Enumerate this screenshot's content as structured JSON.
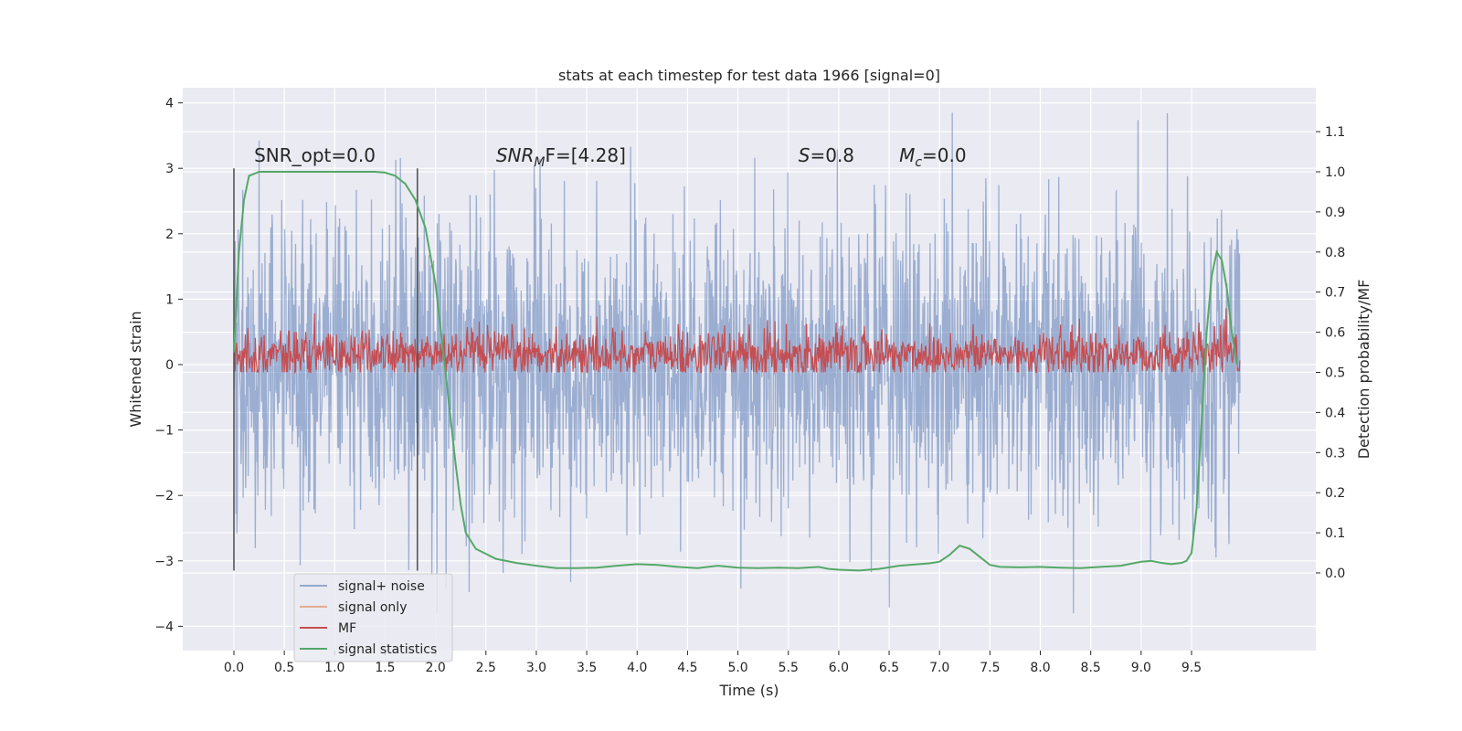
{
  "chart_data": {
    "type": "line",
    "title": "stats at each timestep for test data 1966 [signal=0]",
    "xlabel": "Time (s)",
    "ylabel": "Whitened strain",
    "y2label": "Detection probability/MF",
    "xlim": [
      -0.5,
      10.5
    ],
    "ylim": [
      -4.4,
      4.25
    ],
    "y2lim": [
      -0.2,
      1.2
    ],
    "x_ticks": [
      0.0,
      0.5,
      1.0,
      1.5,
      2.0,
      2.5,
      3.0,
      3.5,
      4.0,
      4.5,
      5.0,
      5.5,
      6.0,
      6.5,
      7.0,
      7.5,
      8.0,
      8.5,
      9.0,
      9.5
    ],
    "x_tick_labels": [
      "0.0",
      "0.5",
      "1.0",
      "1.5",
      "2.0",
      "2.5",
      "3.0",
      "3.5",
      "4.0",
      "4.5",
      "5.0",
      "5.5",
      "6.0",
      "6.5",
      "7.0",
      "7.5",
      "8.0",
      "8.5",
      "9.0",
      "9.5"
    ],
    "y_ticks": [
      -4,
      -3,
      -2,
      -1,
      0,
      1,
      2,
      3,
      4
    ],
    "y_tick_labels": [
      "−4",
      "−3",
      "−2",
      "−1",
      "0",
      "1",
      "2",
      "3",
      "4"
    ],
    "y2_ticks": [
      0.0,
      0.1,
      0.2,
      0.3,
      0.4,
      0.5,
      0.6,
      0.7,
      0.8,
      0.9,
      1.0,
      1.1
    ],
    "y2_tick_labels": [
      "0.0",
      "0.1",
      "0.2",
      "0.3",
      "0.4",
      "0.5",
      "0.6",
      "0.7",
      "0.8",
      "0.9",
      "1.0",
      "1.1"
    ],
    "grid": true,
    "legend_position": "lower-left",
    "series": [
      {
        "name": "signal+ noise",
        "color": "#4c72b0",
        "axis": "left",
        "description_range": [
          -3.8,
          3.9
        ],
        "x_range": [
          0.0,
          9.98
        ]
      },
      {
        "name": "signal only",
        "color": "#dd8452",
        "axis": "left",
        "x": [],
        "y": []
      },
      {
        "name": "MF",
        "color": "#c44e52",
        "axis": "right",
        "description_range": [
          0.5,
          0.68
        ],
        "x_range": [
          0.0,
          9.98
        ]
      },
      {
        "name": "signal statistics",
        "color": "#55a868",
        "axis": "right",
        "x": [
          0.0,
          0.05,
          0.1,
          0.15,
          0.25,
          0.4,
          0.6,
          0.8,
          1.0,
          1.2,
          1.4,
          1.5,
          1.6,
          1.7,
          1.8,
          1.9,
          2.0,
          2.1,
          2.2,
          2.25,
          2.3,
          2.4,
          2.6,
          2.8,
          3.0,
          3.2,
          3.4,
          3.6,
          3.8,
          4.0,
          4.2,
          4.4,
          4.6,
          4.8,
          5.0,
          5.2,
          5.4,
          5.6,
          5.8,
          5.9,
          6.0,
          6.2,
          6.4,
          6.6,
          6.8,
          6.9,
          7.0,
          7.1,
          7.2,
          7.3,
          7.4,
          7.5,
          7.6,
          7.8,
          8.0,
          8.2,
          8.4,
          8.6,
          8.8,
          9.0,
          9.1,
          9.2,
          9.3,
          9.4,
          9.45,
          9.5,
          9.55,
          9.6,
          9.65,
          9.7,
          9.75,
          9.8,
          9.85,
          9.9,
          9.95
        ],
        "y": [
          0.55,
          0.8,
          0.93,
          0.99,
          1.0,
          1.0,
          1.0,
          1.0,
          1.0,
          1.0,
          1.0,
          0.998,
          0.99,
          0.97,
          0.93,
          0.86,
          0.72,
          0.5,
          0.27,
          0.17,
          0.1,
          0.06,
          0.035,
          0.025,
          0.018,
          0.012,
          0.012,
          0.013,
          0.018,
          0.022,
          0.02,
          0.015,
          0.012,
          0.018,
          0.013,
          0.012,
          0.013,
          0.012,
          0.015,
          0.01,
          0.008,
          0.006,
          0.01,
          0.018,
          0.022,
          0.024,
          0.028,
          0.045,
          0.068,
          0.06,
          0.04,
          0.02,
          0.015,
          0.014,
          0.015,
          0.013,
          0.012,
          0.015,
          0.018,
          0.028,
          0.03,
          0.025,
          0.022,
          0.025,
          0.03,
          0.05,
          0.16,
          0.38,
          0.6,
          0.74,
          0.8,
          0.78,
          0.71,
          0.6,
          0.52
        ]
      }
    ],
    "vertical_lines": [
      0.0,
      1.82
    ],
    "vertical_lines_range": [
      -3.15,
      3.0
    ],
    "annotations": [
      {
        "kind": "plain",
        "text": "SNR_opt=0.0",
        "x": 0.2,
        "y": 3.1
      },
      {
        "kind": "sub",
        "main": "SNR",
        "sub": "M",
        "rest": "F=[4.28]",
        "x": 2.6,
        "y": 3.1
      },
      {
        "kind": "plain-it",
        "main": "S",
        "rest": "=0.8",
        "x": 5.6,
        "y": 3.1
      },
      {
        "kind": "sub",
        "main": "M",
        "sub": "c",
        "rest": "=0.0",
        "x": 6.6,
        "y": 3.1
      }
    ],
    "colors": {
      "plot_bg": "#eaeaf2",
      "grid": "#ffffff",
      "text": "#262626",
      "vline": "#555555"
    }
  }
}
